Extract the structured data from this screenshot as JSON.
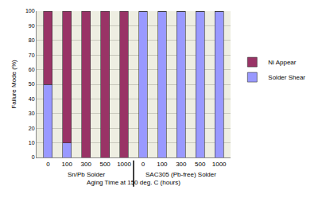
{
  "chart_data": {
    "type": "bar",
    "stacked": true,
    "y_label": "Failure Mode (%)",
    "x_label": "Aging Time at 150 deg. C (hours)",
    "categories": [
      "0",
      "100",
      "300",
      "500",
      "1000",
      "0",
      "100",
      "300",
      "500",
      "1000"
    ],
    "annotations": [
      "Sn/Pb Solder",
      "SAC305 (Pb-free) Solder"
    ],
    "series": [
      {
        "name": "Solder Shear",
        "color": "#9999ff",
        "values": [
          50,
          10,
          0,
          0,
          0,
          100,
          100,
          100,
          100,
          100
        ]
      },
      {
        "name": "Ni Appear",
        "color": "#993366",
        "values": [
          50,
          90,
          100,
          100,
          100,
          0,
          0,
          0,
          0,
          0
        ]
      }
    ],
    "ylim": [
      0,
      100
    ],
    "yticks": [
      0,
      10,
      20,
      30,
      40,
      50,
      60,
      70,
      80,
      90,
      100
    ],
    "grid": true,
    "legend": "right"
  }
}
